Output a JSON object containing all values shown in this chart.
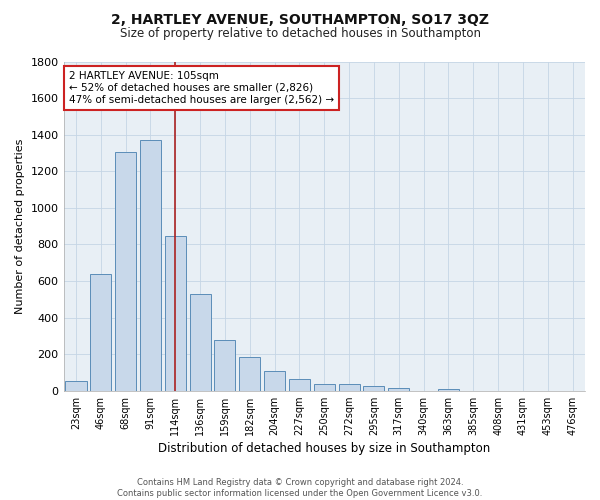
{
  "title": "2, HARTLEY AVENUE, SOUTHAMPTON, SO17 3QZ",
  "subtitle": "Size of property relative to detached houses in Southampton",
  "xlabel": "Distribution of detached houses by size in Southampton",
  "ylabel": "Number of detached properties",
  "footer_line1": "Contains HM Land Registry data © Crown copyright and database right 2024.",
  "footer_line2": "Contains public sector information licensed under the Open Government Licence v3.0.",
  "bar_labels": [
    "23sqm",
    "46sqm",
    "68sqm",
    "91sqm",
    "114sqm",
    "136sqm",
    "159sqm",
    "182sqm",
    "204sqm",
    "227sqm",
    "250sqm",
    "272sqm",
    "295sqm",
    "317sqm",
    "340sqm",
    "363sqm",
    "385sqm",
    "408sqm",
    "431sqm",
    "453sqm",
    "476sqm"
  ],
  "bar_values": [
    55,
    640,
    1305,
    1370,
    845,
    530,
    275,
    185,
    105,
    65,
    35,
    35,
    25,
    12,
    0,
    10,
    0,
    0,
    0,
    0,
    0
  ],
  "bar_color": "#c8d8ea",
  "bar_edge_color": "#5b8db8",
  "grid_color": "#c5d5e5",
  "bg_color": "#e8eff5",
  "fig_bg_color": "#ffffff",
  "vline_x": 4,
  "vline_color": "#aa2222",
  "annotation_text": "2 HARTLEY AVENUE: 105sqm\n← 52% of detached houses are smaller (2,826)\n47% of semi-detached houses are larger (2,562) →",
  "annotation_box_color": "white",
  "annotation_box_edge": "#cc2222",
  "ylim": [
    0,
    1800
  ],
  "yticks": [
    0,
    200,
    400,
    600,
    800,
    1000,
    1200,
    1400,
    1600,
    1800
  ]
}
